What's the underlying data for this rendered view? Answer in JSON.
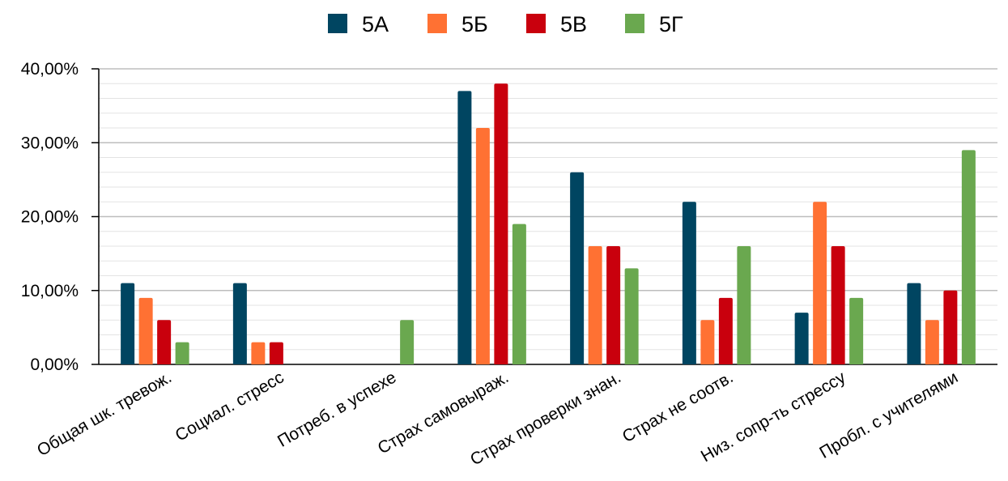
{
  "chart_data": {
    "type": "bar",
    "categories": [
      "Общая шк. тревож.",
      "Социал. стресс",
      "Потреб. в успехе",
      "Страх самовыраж.",
      "Страх проверки знан.",
      "Страх не соотв.",
      "Низ. сопр-ть стрессу",
      "Пробл. с учителями"
    ],
    "series": [
      {
        "name": "5А",
        "color": "#004561",
        "values": [
          11,
          11,
          0,
          37,
          26,
          22,
          7,
          11
        ]
      },
      {
        "name": "5Б",
        "color": "#ff7133",
        "values": [
          9,
          3,
          0,
          32,
          16,
          6,
          22,
          6
        ]
      },
      {
        "name": "5В",
        "color": "#c9000d",
        "values": [
          6,
          3,
          0,
          38,
          16,
          9,
          16,
          10
        ]
      },
      {
        "name": "5Г",
        "color": "#6aa84f",
        "values": [
          3,
          0,
          6,
          19,
          13,
          16,
          9,
          29
        ]
      }
    ],
    "y_ticks": [
      "0,00%",
      "10,00%",
      "20,00%",
      "30,00%",
      "40,00%"
    ],
    "ylim": [
      0,
      40
    ],
    "grid": true,
    "legend_position": "top-center"
  }
}
